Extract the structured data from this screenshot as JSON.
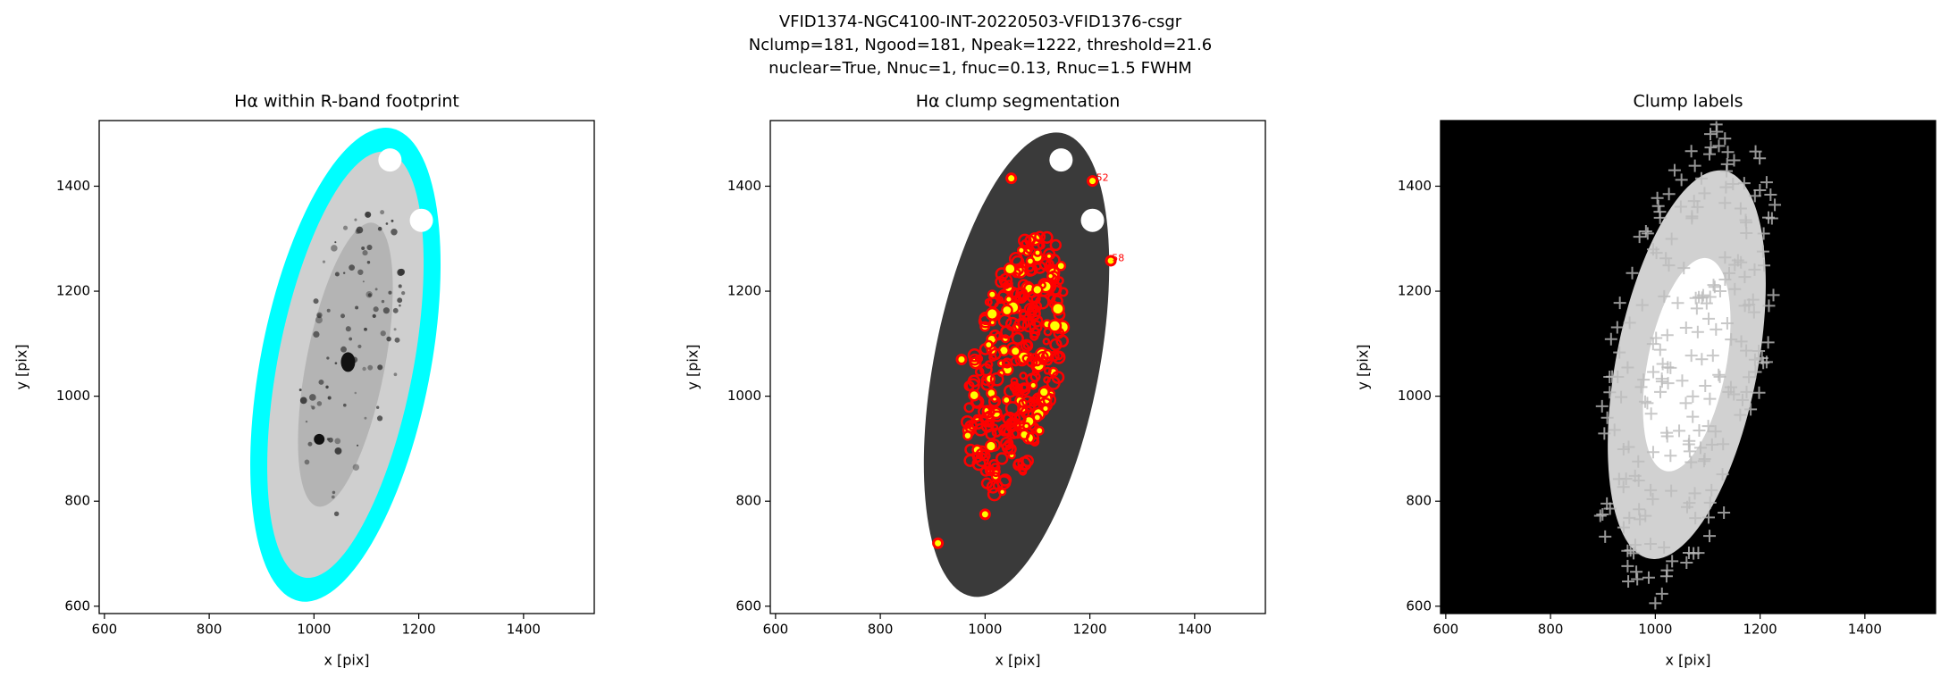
{
  "figure_title": [
    "VFID1374-NGC4100-INT-20220503-VFID1376-csgr",
    "Nclump=181, Ngood=181, Npeak=1222, threshold=21.6",
    "nuclear=True, Nnuc=1, fnuc=0.13, Rnuc=1.5 FWHM"
  ],
  "chart_data": [
    {
      "type": "image",
      "title": "Hα within R-band footprint",
      "xlabel": "x [pix]",
      "ylabel": "y [pix]",
      "xlim": [
        590,
        1535
      ],
      "ylim": [
        586,
        1525
      ],
      "xticks": [
        600,
        800,
        1000,
        1200,
        1400
      ],
      "yticks": [
        600,
        800,
        1000,
        1200,
        1400
      ],
      "background": "#ffffff"
    },
    {
      "type": "image",
      "title": "Hα clump segmentation",
      "xlabel": "x [pix]",
      "ylabel": "y [pix]",
      "xlim": [
        590,
        1535
      ],
      "ylim": [
        586,
        1525
      ],
      "xticks": [
        600,
        800,
        1000,
        1200,
        1400
      ],
      "yticks": [
        600,
        800,
        1000,
        1200,
        1400
      ],
      "background": "#ffffff",
      "annotations": [
        {
          "text": "52",
          "x": 1212,
          "y": 1415
        },
        {
          "text": "58",
          "x": 1242,
          "y": 1262
        }
      ]
    },
    {
      "type": "image",
      "title": "Clump labels",
      "xlabel": "x [pix]",
      "ylabel": "y [pix]",
      "xlim": [
        590,
        1535
      ],
      "ylim": [
        586,
        1525
      ],
      "xticks": [
        600,
        800,
        1000,
        1200,
        1400
      ],
      "yticks": [
        600,
        800,
        1000,
        1200,
        1400
      ],
      "background": "#000000"
    }
  ]
}
